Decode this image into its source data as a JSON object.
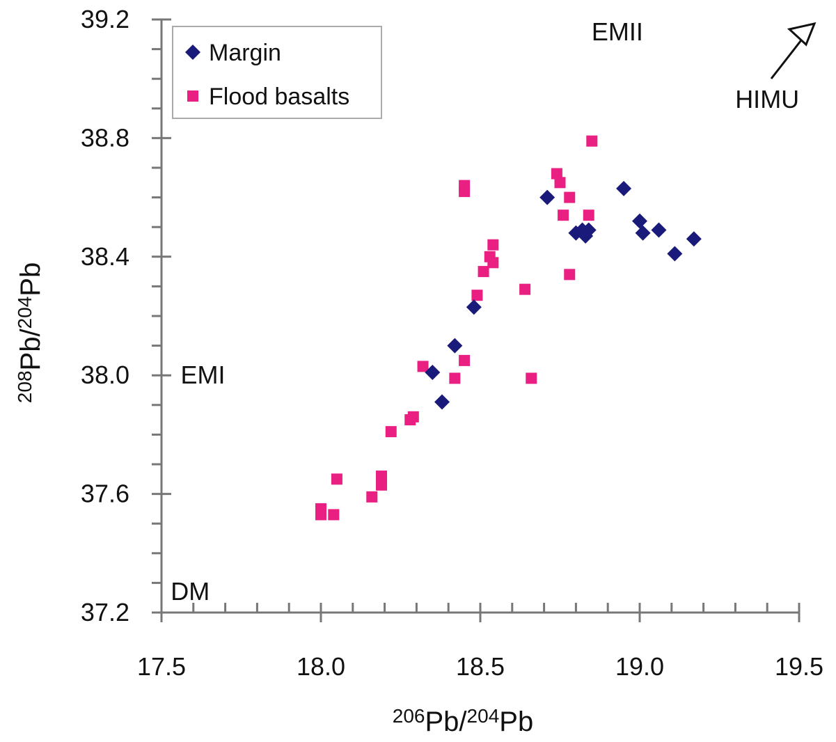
{
  "chart_data": {
    "type": "scatter",
    "title": "",
    "xlabel": {
      "parts": [
        {
          "text": "206",
          "sup": true
        },
        {
          "text": "Pb/",
          "sup": false
        },
        {
          "text": "204",
          "sup": true
        },
        {
          "text": "Pb",
          "sup": false
        }
      ]
    },
    "ylabel": {
      "parts": [
        {
          "text": "208",
          "sup": true
        },
        {
          "text": "Pb/",
          "sup": false
        },
        {
          "text": "204",
          "sup": true
        },
        {
          "text": "Pb",
          "sup": false
        }
      ]
    },
    "xlim": [
      17.5,
      19.5
    ],
    "ylim": [
      37.2,
      39.2
    ],
    "x_ticks": [
      "17.5",
      "18.0",
      "18.5",
      "19.0",
      "19.5"
    ],
    "y_ticks": [
      "37.2",
      "37.6",
      "38.0",
      "38.4",
      "38.8",
      "39.2"
    ],
    "grid": false,
    "legend_position": "top-left",
    "series": [
      {
        "name": "Margin",
        "marker": "diamond",
        "color": "#1a1a7a",
        "points": [
          [
            18.35,
            38.01
          ],
          [
            18.38,
            37.91
          ],
          [
            18.42,
            38.1
          ],
          [
            18.48,
            38.23
          ],
          [
            18.71,
            38.6
          ],
          [
            18.8,
            38.48
          ],
          [
            18.82,
            38.49
          ],
          [
            18.83,
            38.47
          ],
          [
            18.84,
            38.49
          ],
          [
            18.95,
            38.63
          ],
          [
            19.0,
            38.52
          ],
          [
            19.01,
            38.48
          ],
          [
            19.06,
            38.49
          ],
          [
            19.11,
            38.41
          ],
          [
            19.17,
            38.46
          ]
        ]
      },
      {
        "name": "Flood basalts",
        "marker": "square",
        "color": "#ea1f82",
        "points": [
          [
            18.0,
            37.53
          ],
          [
            18.0,
            37.55
          ],
          [
            18.04,
            37.53
          ],
          [
            18.05,
            37.65
          ],
          [
            18.16,
            37.59
          ],
          [
            18.19,
            37.63
          ],
          [
            18.19,
            37.66
          ],
          [
            18.22,
            37.81
          ],
          [
            18.28,
            37.85
          ],
          [
            18.29,
            37.86
          ],
          [
            18.32,
            38.03
          ],
          [
            18.42,
            37.99
          ],
          [
            18.45,
            38.05
          ],
          [
            18.45,
            38.62
          ],
          [
            18.45,
            38.64
          ],
          [
            18.49,
            38.27
          ],
          [
            18.51,
            38.35
          ],
          [
            18.53,
            38.4
          ],
          [
            18.54,
            38.44
          ],
          [
            18.54,
            38.38
          ],
          [
            18.64,
            38.29
          ],
          [
            18.66,
            37.99
          ],
          [
            18.74,
            38.68
          ],
          [
            18.75,
            38.65
          ],
          [
            18.76,
            38.54
          ],
          [
            18.78,
            38.6
          ],
          [
            18.78,
            38.34
          ],
          [
            18.84,
            38.54
          ],
          [
            18.85,
            38.79
          ]
        ]
      }
    ],
    "annotations": [
      {
        "text": "EMII",
        "x": 18.93,
        "y": 39.2
      },
      {
        "text": "HIMU",
        "x": 19.4,
        "y": 38.93
      },
      {
        "text": "EMI",
        "x": 17.63,
        "y": 38.0
      },
      {
        "text": "DM",
        "x": 17.59,
        "y": 37.27
      }
    ]
  }
}
